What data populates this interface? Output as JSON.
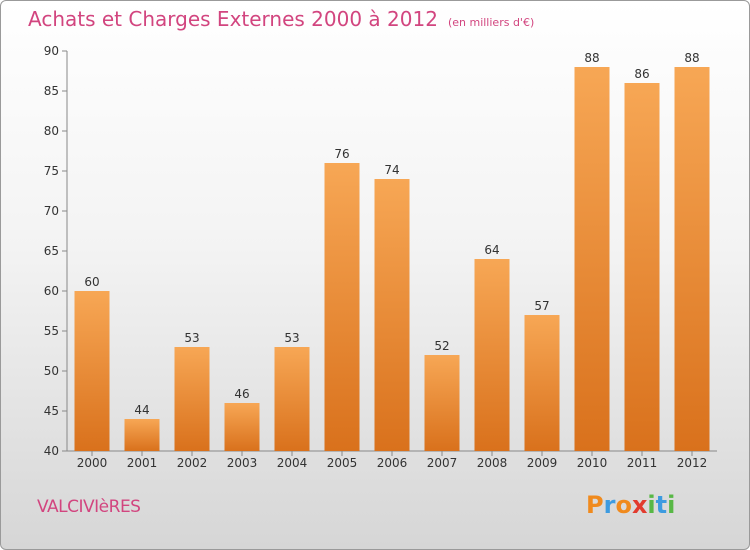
{
  "title": "Achats et Charges Externes 2000 à 2012",
  "unit": "(en milliers d'€)",
  "town": "VALCIVIèRES",
  "brand": {
    "letters": [
      "P",
      "r",
      "o",
      "x",
      "i",
      "t",
      "i"
    ],
    "colors": [
      "#f08a1d",
      "#3d9be0",
      "#f08a1d",
      "#e23b2e",
      "#58b846",
      "#3d9be0",
      "#58b846"
    ]
  },
  "colors": {
    "title": "#d2457f",
    "bar_top": "#f7a755",
    "bar_bottom": "#d9711c",
    "axis": "#888888"
  },
  "chart_data": {
    "type": "bar",
    "categories": [
      "2000",
      "2001",
      "2002",
      "2003",
      "2004",
      "2005",
      "2006",
      "2007",
      "2008",
      "2009",
      "2010",
      "2011",
      "2012"
    ],
    "values": [
      60,
      44,
      53,
      46,
      53,
      76,
      74,
      52,
      64,
      57,
      88,
      86,
      88
    ],
    "ylim": [
      40,
      90
    ],
    "yticks": [
      40,
      45,
      50,
      55,
      60,
      65,
      70,
      75,
      80,
      85,
      90
    ],
    "xlabel": "",
    "ylabel": "",
    "grid": false
  }
}
